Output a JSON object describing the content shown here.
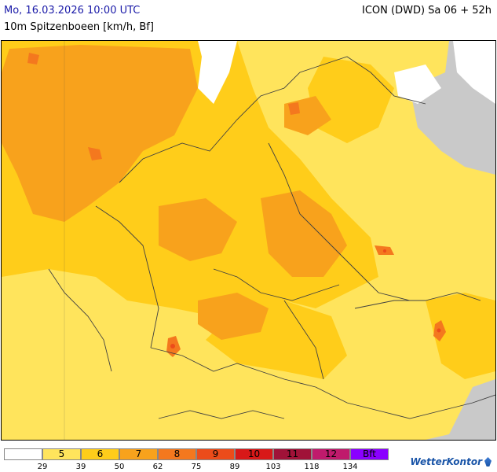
{
  "header": {
    "valid_time": "Mo, 16.03.2026 10:00 UTC",
    "model_run": "ICON (DWD) Sa 06 + 52h",
    "parameter": "10m Spitzenboeen [km/h, Bf]"
  },
  "colors": {
    "sea": "#ffffff",
    "out_of_domain": "#c9c9c9",
    "borders": "#404040"
  },
  "legend": {
    "classes": [
      {
        "label": "",
        "color": "#ffffff"
      },
      {
        "label": "5",
        "color": "#ffe45c"
      },
      {
        "label": "6",
        "color": "#ffcd1a"
      },
      {
        "label": "7",
        "color": "#f8a21c"
      },
      {
        "label": "8",
        "color": "#f4781e"
      },
      {
        "label": "9",
        "color": "#ec4c1a"
      },
      {
        "label": "10",
        "color": "#d81818"
      },
      {
        "label": "11",
        "color": "#a01238"
      },
      {
        "label": "12",
        "color": "#c01a6c"
      },
      {
        "label": "Bft",
        "color": "#8a00ff"
      }
    ],
    "ticks": [
      "29",
      "39",
      "50",
      "62",
      "75",
      "89",
      "103",
      "118",
      "134"
    ]
  },
  "brand": {
    "name": "WetterKontor"
  }
}
